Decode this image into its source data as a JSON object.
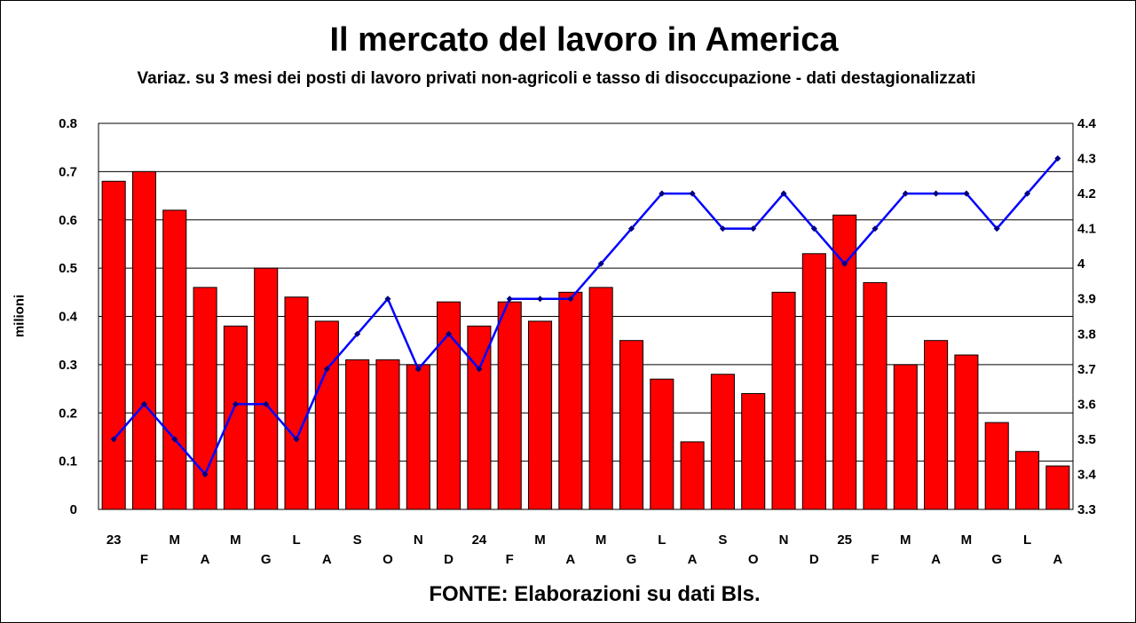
{
  "chart_data": {
    "type": "bar",
    "title": "Il mercato del lavoro in America",
    "subtitle": "Variaz. su 3 mesi dei posti di lavoro privati non-agricoli e tasso di disoccupazione - dati destagionalizzati",
    "source": "FONTE: Elaborazioni su dati Bls.",
    "ylabel": "milioni",
    "ylim": [
      0,
      0.8
    ],
    "y2lim": [
      3.3,
      4.4
    ],
    "y_ticks": [
      "0",
      "0.1",
      "0.2",
      "0.3",
      "0.4",
      "0.5",
      "0.6",
      "0.7",
      "0.8"
    ],
    "y2_ticks": [
      "3.3",
      "3.4",
      "3.5",
      "3.6",
      "3.7",
      "3.8",
      "3.9",
      "4",
      "4.1",
      "4.2",
      "4.3",
      "4.4"
    ],
    "grid": true,
    "categories": [
      "23",
      "F",
      "M",
      "A",
      "M",
      "G",
      "L",
      "A",
      "S",
      "O",
      "N",
      "D",
      "24",
      "F",
      "M",
      "A",
      "M",
      "G",
      "L",
      "A",
      "S",
      "O",
      "N",
      "D",
      "25",
      "F",
      "M",
      "A",
      "M",
      "G",
      "L",
      "A"
    ],
    "series": [
      {
        "kind": "bar",
        "axis": "left",
        "color": "#ff0000",
        "values": [
          0.68,
          0.7,
          0.62,
          0.46,
          0.38,
          0.5,
          0.44,
          0.39,
          0.31,
          0.31,
          0.3,
          0.43,
          0.38,
          0.43,
          0.39,
          0.45,
          0.46,
          0.35,
          0.27,
          0.14,
          0.28,
          0.24,
          0.45,
          0.53,
          0.61,
          0.47,
          0.3,
          0.35,
          0.32,
          0.18,
          0.12,
          0.09
        ]
      },
      {
        "kind": "line",
        "axis": "right",
        "color": "#0000ff",
        "values": [
          3.5,
          3.6,
          3.5,
          3.4,
          3.6,
          3.6,
          3.5,
          3.7,
          3.8,
          3.9,
          3.7,
          3.8,
          3.7,
          3.9,
          3.9,
          3.9,
          4.0,
          4.1,
          4.2,
          4.2,
          4.1,
          4.1,
          4.2,
          4.1,
          4.0,
          4.1,
          4.2,
          4.2,
          4.2,
          4.1,
          4.2,
          4.3
        ]
      }
    ]
  }
}
